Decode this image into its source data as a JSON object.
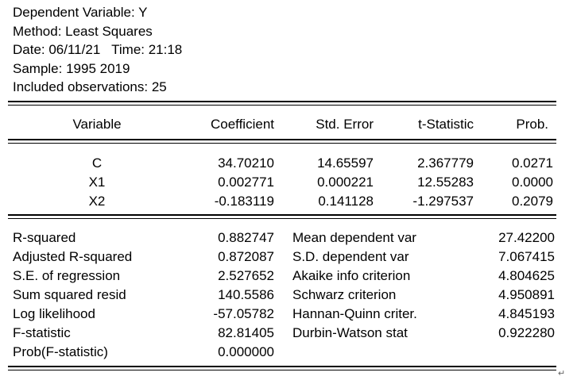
{
  "header": {
    "dependent": "Dependent Variable: Y",
    "method": "Method: Least Squares",
    "date": "Date: 06/11/21   Time: 21:18",
    "sample": "Sample: 1995 2019",
    "observations": "Included observations: 25"
  },
  "coef_table": {
    "columns": [
      "Variable",
      "Coefficient",
      "Std. Error",
      "t-Statistic",
      "Prob."
    ],
    "rows": [
      {
        "variable": "C",
        "coefficient": "34.70210",
        "std_error": "14.65597",
        "t_stat": "2.367779",
        "prob": "0.0271"
      },
      {
        "variable": "X1",
        "coefficient": "0.002771",
        "std_error": "0.000221",
        "t_stat": "12.55283",
        "prob": "0.0000"
      },
      {
        "variable": "X2",
        "coefficient": "-0.183119",
        "std_error": "0.141128",
        "t_stat": "-1.297537",
        "prob": "0.2079"
      }
    ]
  },
  "stats": {
    "left": [
      {
        "label": "R-squared",
        "value": "0.882747"
      },
      {
        "label": "Adjusted R-squared",
        "value": "0.872087"
      },
      {
        "label": "S.E. of regression",
        "value": "2.527652"
      },
      {
        "label": "Sum squared resid",
        "value": "140.5586"
      },
      {
        "label": "Log likelihood",
        "value": "-57.05782"
      },
      {
        "label": "F-statistic",
        "value": "82.81405"
      },
      {
        "label": "Prob(F-statistic)",
        "value": "0.000000"
      }
    ],
    "right": [
      {
        "label": "Mean dependent var",
        "value": "27.42200"
      },
      {
        "label": "S.D. dependent var",
        "value": "7.067415"
      },
      {
        "label": "Akaike info criterion",
        "value": "4.804625"
      },
      {
        "label": "Schwarz criterion",
        "value": "4.950891"
      },
      {
        "label": "Hannan-Quinn criter.",
        "value": "4.845193"
      },
      {
        "label": "Durbin-Watson stat",
        "value": "0.922280"
      }
    ]
  },
  "pilcrow": "↵"
}
